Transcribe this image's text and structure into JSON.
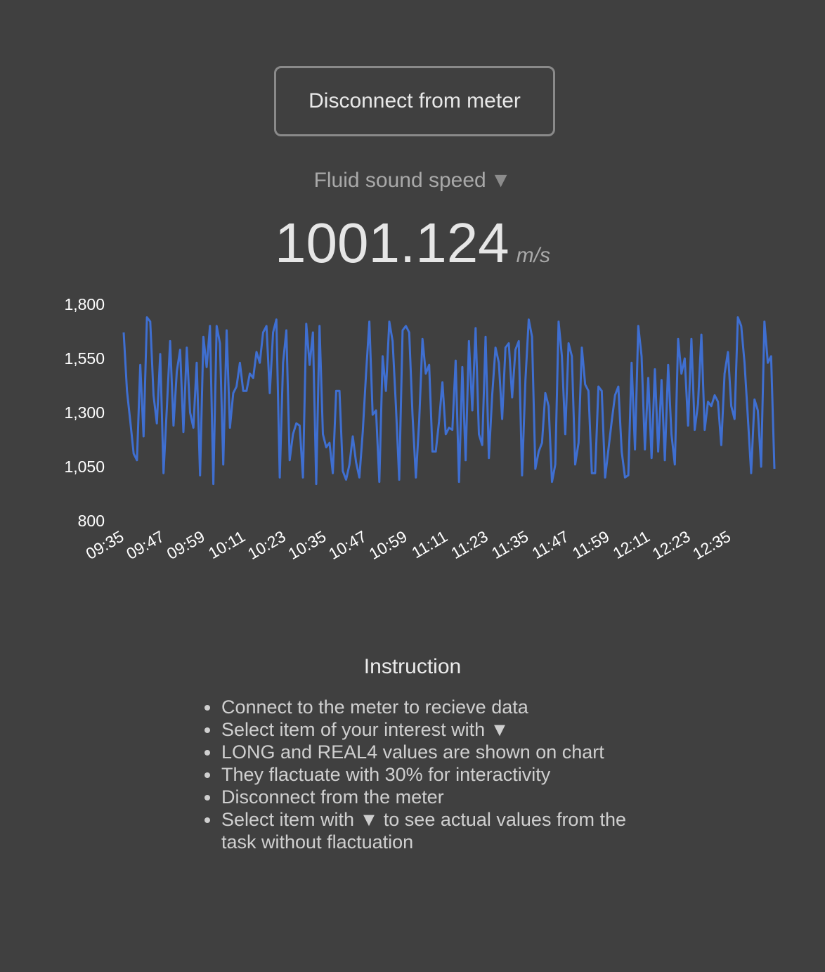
{
  "connect_button": {
    "label": "Disconnect from meter"
  },
  "selector": {
    "label": "Fluid sound speed",
    "caret": "▼"
  },
  "reading": {
    "value": "1001.124",
    "unit": "m/s"
  },
  "instruction": {
    "title": "Instruction",
    "items": [
      "Connect to the meter to recieve data",
      "Select item of your interest with ▼",
      "LONG and REAL4 values are shown on chart",
      "They flactuate with 30% for interactivity",
      "Disconnect from the meter",
      "Select item with ▼ to see actual values from the task without flactuation"
    ]
  },
  "colors": {
    "background": "#404040",
    "line": "#3f6fd1"
  },
  "chart_data": {
    "type": "line",
    "title": "",
    "xlabel": "",
    "ylabel": "",
    "ylim": [
      800,
      1800
    ],
    "y_ticks": [
      "1,800",
      "1,550",
      "1,300",
      "1,050",
      "800"
    ],
    "x_ticks": [
      "09:35",
      "09:47",
      "09:59",
      "10:11",
      "10:23",
      "10:35",
      "10:47",
      "10:59",
      "11:11",
      "11:23",
      "11:35",
      "11:47",
      "11:59",
      "12:11",
      "12:23",
      "12:35"
    ],
    "grid": false,
    "legend": "none",
    "x_start": "09:35",
    "x_end": "12:48",
    "series": [
      {
        "values": [
          1670,
          1400,
          1260,
          1110,
          1080,
          1520,
          1190,
          1740,
          1720,
          1380,
          1250,
          1570,
          1020,
          1320,
          1630,
          1240,
          1490,
          1590,
          1210,
          1600,
          1300,
          1230,
          1530,
          1010,
          1650,
          1510,
          1700,
          970,
          1700,
          1620,
          1060,
          1680,
          1230,
          1390,
          1420,
          1530,
          1400,
          1400,
          1480,
          1460,
          1580,
          1530,
          1670,
          1700,
          1390,
          1670,
          1730,
          1000,
          1530,
          1680,
          1080,
          1200,
          1250,
          1240,
          1000,
          1710,
          1520,
          1670,
          970,
          1700,
          1200,
          1140,
          1160,
          1020,
          1400,
          1400,
          1030,
          990,
          1060,
          1190,
          1070,
          1000,
          1210,
          1480,
          1720,
          1290,
          1310,
          980,
          1560,
          1400,
          1720,
          1630,
          1330,
          990,
          1680,
          1700,
          1670,
          1290,
          1000,
          1260,
          1640,
          1480,
          1520,
          1120,
          1120,
          1260,
          1440,
          1200,
          1230,
          1220,
          1540,
          980,
          1510,
          1080,
          1630,
          1310,
          1690,
          1200,
          1150,
          1650,
          1090,
          1380,
          1600,
          1530,
          1270,
          1600,
          1620,
          1370,
          1590,
          1630,
          1010,
          1450,
          1730,
          1650,
          1040,
          1120,
          1160,
          1390,
          1330,
          980,
          1060,
          1720,
          1560,
          1200,
          1620,
          1560,
          1060,
          1160,
          1600,
          1430,
          1400,
          1020,
          1020,
          1420,
          1400,
          1000,
          1130,
          1260,
          1380,
          1420,
          1120,
          1000,
          1010,
          1530,
          1130,
          1700,
          1560,
          1130,
          1460,
          1090,
          1500,
          1120,
          1450,
          1080,
          1520,
          1200,
          1060,
          1640,
          1480,
          1550,
          1240,
          1640,
          1220,
          1340,
          1660,
          1220,
          1350,
          1330,
          1380,
          1350,
          1150,
          1480,
          1580,
          1330,
          1270,
          1740,
          1700,
          1530,
          1280,
          1020,
          1360,
          1310,
          1050,
          1720,
          1530,
          1560,
          1040
        ]
      }
    ]
  }
}
